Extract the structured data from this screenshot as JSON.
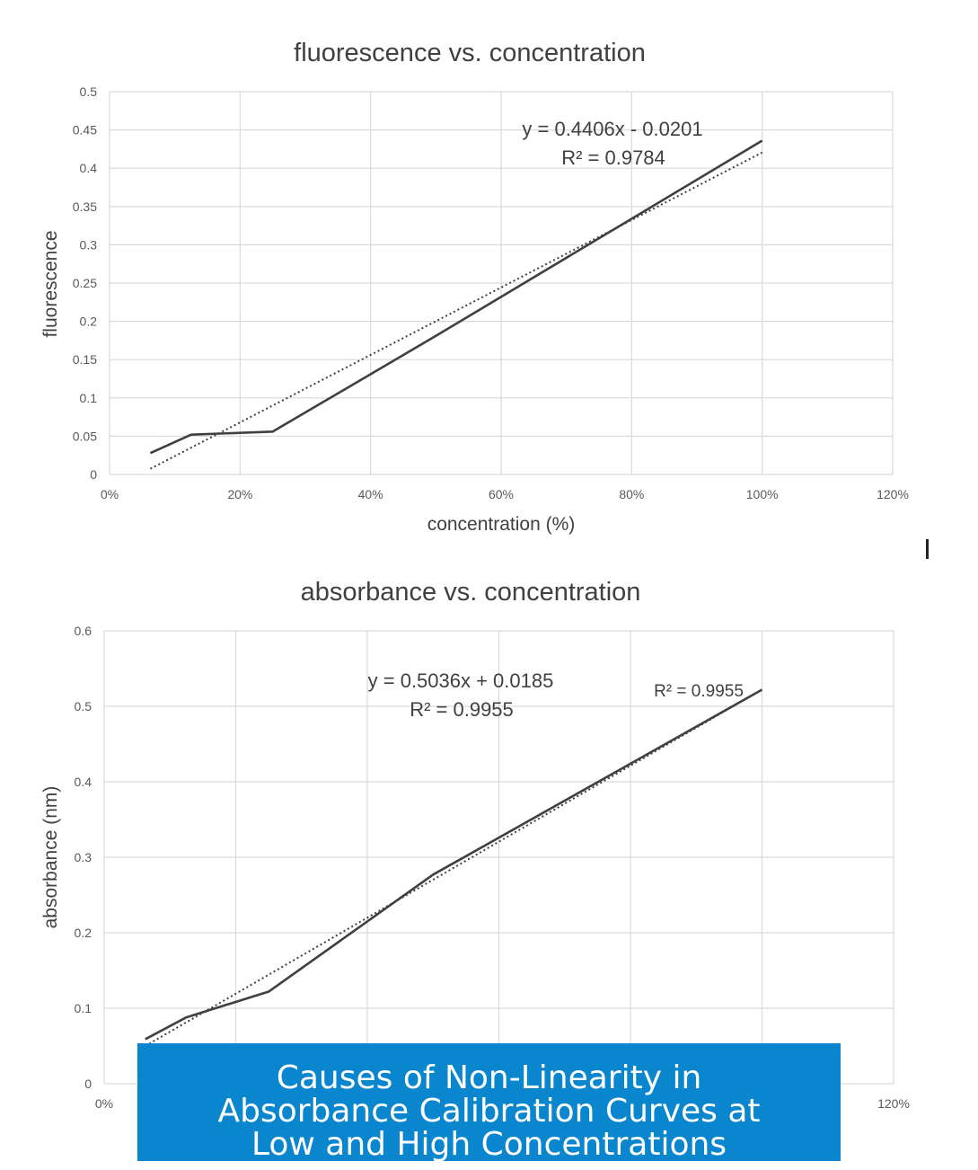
{
  "banner": {
    "text": "Causes of Non-Linearity in Absorbance Calibration Curves at Low and High Concentrations"
  },
  "colors": {
    "series": "#404040",
    "gridline": "#d9d9d9",
    "banner_bg": "#0a86cf",
    "banner_text": "#ffffff"
  },
  "chart_data": [
    {
      "type": "line",
      "title": "fluorescence vs. concentration",
      "xlabel": "concentration (%)",
      "ylabel": "fluorescence",
      "xlim": [
        0,
        1.2
      ],
      "ylim": [
        0,
        0.5
      ],
      "x_ticks": [
        "0%",
        "20%",
        "40%",
        "60%",
        "80%",
        "100%",
        "120%"
      ],
      "y_ticks": [
        "0",
        "0.05",
        "0.1",
        "0.15",
        "0.2",
        "0.25",
        "0.3",
        "0.35",
        "0.4",
        "0.45",
        "0.5"
      ],
      "grid": true,
      "series": [
        {
          "x": [
            0.0625,
            0.125,
            0.25,
            0.5,
            1.0
          ],
          "values": [
            0.028,
            0.052,
            0.056,
            0.181,
            0.436
          ]
        }
      ],
      "trendline": {
        "slope": 0.4406,
        "intercept": -0.0201,
        "x_range": [
          0.0625,
          1.0
        ],
        "style": "dotted"
      },
      "annotations": [
        "y = 0.4406x - 0.0201",
        "R² = 0.9784"
      ]
    },
    {
      "type": "line",
      "title": "absorbance vs. concentration",
      "xlabel": "",
      "ylabel": "absorbance (nm)",
      "xlim": [
        0,
        1.2
      ],
      "ylim": [
        0,
        0.6
      ],
      "x_ticks": [
        "0%",
        "120%"
      ],
      "y_ticks": [
        "0",
        "0.1",
        "0.2",
        "0.3",
        "0.4",
        "0.5",
        "0.6"
      ],
      "grid": true,
      "series": [
        {
          "x": [
            0.0625,
            0.125,
            0.25,
            0.5,
            1.0
          ],
          "values": [
            0.059,
            0.088,
            0.122,
            0.277,
            0.522
          ]
        }
      ],
      "trendline": {
        "slope": 0.5036,
        "intercept": 0.0185,
        "x_range": [
          0.0625,
          1.0
        ],
        "style": "dotted"
      },
      "annotations": [
        "y = 0.5036x + 0.0185",
        "R² = 0.9955",
        "R² = 0.9955"
      ]
    }
  ]
}
